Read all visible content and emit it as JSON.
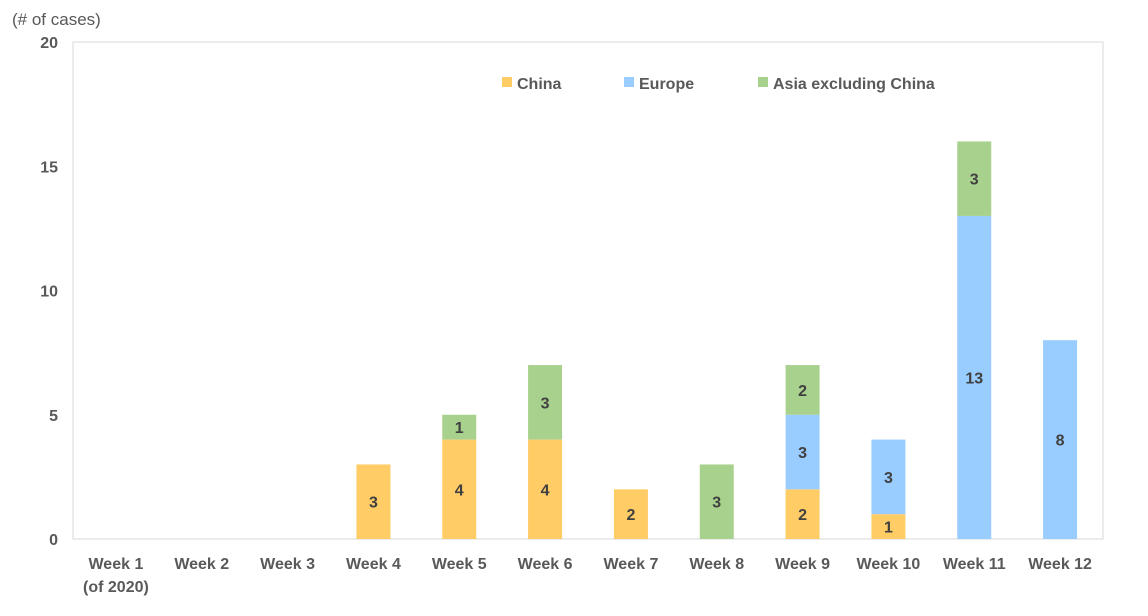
{
  "chart_data": {
    "type": "bar",
    "stacked": true,
    "ylabel": "(# of cases)",
    "ylim": [
      0,
      20
    ],
    "yticks": [
      0,
      5,
      10,
      15,
      20
    ],
    "grid": false,
    "legend_position": "top",
    "categories": [
      [
        "Week 1",
        "(of 2020)"
      ],
      [
        "Week 2"
      ],
      [
        "Week 3"
      ],
      [
        "Week 4"
      ],
      [
        "Week 5"
      ],
      [
        "Week 6"
      ],
      [
        "Week 7"
      ],
      [
        "Week 8"
      ],
      [
        "Week 9"
      ],
      [
        "Week 10"
      ],
      [
        "Week 11"
      ],
      [
        "Week 12"
      ]
    ],
    "series": [
      {
        "name": "China",
        "color": "#FFCC66",
        "values": [
          0,
          0,
          0,
          3,
          4,
          4,
          2,
          0,
          2,
          1,
          0,
          0
        ]
      },
      {
        "name": "Europe",
        "color": "#99CCFF",
        "values": [
          0,
          0,
          0,
          0,
          0,
          0,
          0,
          0,
          3,
          3,
          13,
          8
        ]
      },
      {
        "name": "Asia excluding China",
        "color": "#A9D18E",
        "values": [
          0,
          0,
          0,
          0,
          1,
          3,
          0,
          3,
          2,
          0,
          3,
          0
        ]
      }
    ]
  }
}
